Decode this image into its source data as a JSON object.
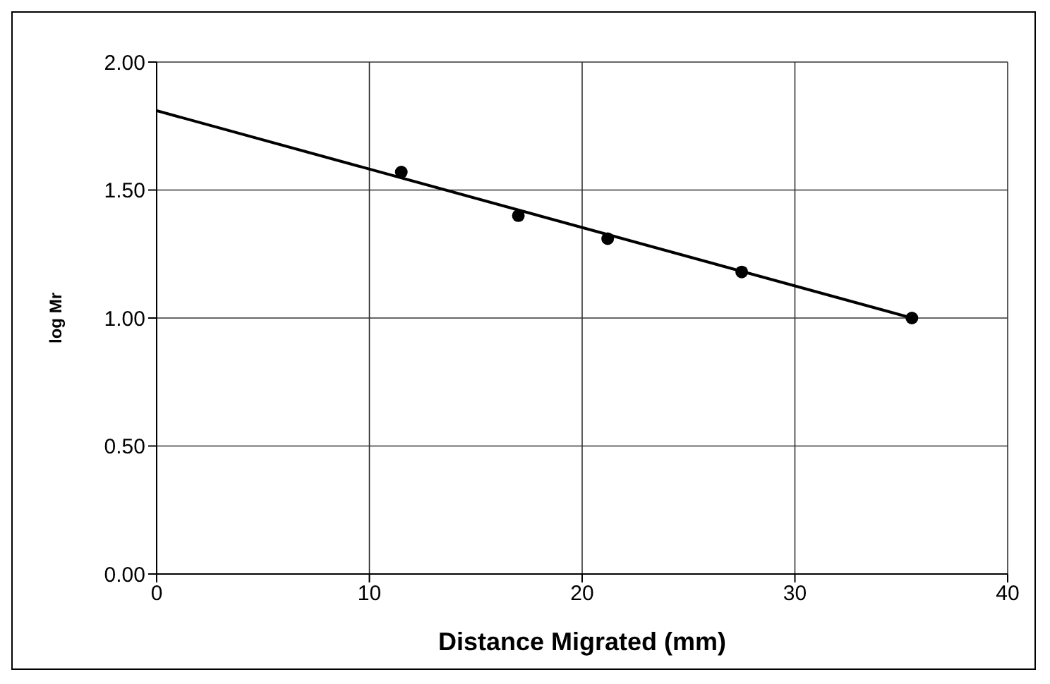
{
  "chart_data": {
    "type": "scatter",
    "xlabel": "Distance Migrated (mm)",
    "ylabel": "log Mr",
    "xlim": [
      0,
      40
    ],
    "xticks": [
      0,
      10,
      20,
      30,
      40
    ],
    "ylim": [
      0,
      2
    ],
    "yticks": [
      {
        "value": 0,
        "label": "0.00"
      },
      {
        "value": 0.5,
        "label": "0.50"
      },
      {
        "value": 1,
        "label": "1.00"
      },
      {
        "value": 1.5,
        "label": "1.50"
      },
      {
        "value": 2,
        "label": "2.00"
      }
    ],
    "grid": true,
    "marker": "circle",
    "series": [
      {
        "color": "#000000",
        "x": [
          11.5,
          17,
          21.2,
          27.5,
          35.5
        ],
        "values": [
          1.57,
          1.4,
          1.31,
          1.18,
          1.0
        ]
      },
      {
        "type": "line",
        "color": "#000000",
        "marker": "none",
        "x": [
          0,
          35.5
        ],
        "values": [
          1.81,
          1.0
        ]
      }
    ]
  }
}
